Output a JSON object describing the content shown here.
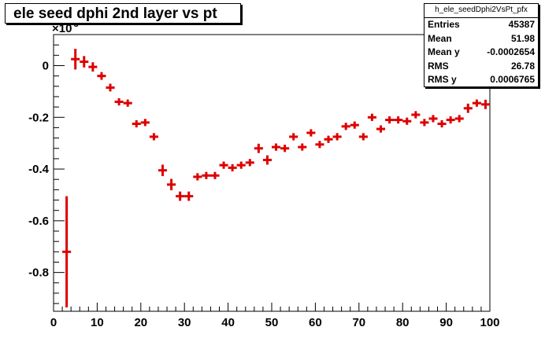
{
  "title": "ele seed dphi 2nd layer vs pt",
  "stats": {
    "name": "h_ele_seedDphi2VsPt_pfx",
    "rows": [
      {
        "label": "Entries",
        "value": "45387"
      },
      {
        "label": "Mean",
        "value": "51.98"
      },
      {
        "label": "Mean y",
        "value": "-0.0002654"
      },
      {
        "label": "RMS",
        "value": "26.78"
      },
      {
        "label": "RMS y",
        "value": "0.0006765"
      }
    ]
  },
  "chart_data": {
    "type": "scatter",
    "title": "ele seed dphi 2nd layer vs pt",
    "xlim": [
      0,
      100
    ],
    "ylim": [
      -0.95,
      0.12
    ],
    "y_exponent_label": "×10",
    "y_exponent": "-3",
    "x_ticks": [
      0,
      10,
      20,
      30,
      40,
      50,
      60,
      70,
      80,
      90,
      100
    ],
    "y_ticks": [
      0,
      -0.2,
      -0.4,
      -0.6,
      -0.8
    ],
    "y_tick_labels": [
      "0",
      "-0.2",
      "-0.4",
      "-0.6",
      "-0.8"
    ],
    "color": "#dd0000",
    "bin_halfwidth": 1,
    "series": [
      {
        "x": [
          3,
          5,
          7,
          9,
          11,
          13,
          15,
          17,
          19,
          21,
          23,
          25,
          27,
          29,
          31,
          33,
          35,
          37,
          39,
          41,
          43,
          45,
          47,
          49,
          51,
          53,
          55,
          57,
          59,
          61,
          63,
          65,
          67,
          69,
          71,
          73,
          75,
          77,
          79,
          81,
          83,
          85,
          87,
          89,
          91,
          93,
          95,
          97,
          99
        ],
        "y": [
          -0.72,
          0.025,
          0.015,
          -0.005,
          -0.04,
          -0.085,
          -0.14,
          -0.145,
          -0.225,
          -0.22,
          -0.275,
          -0.405,
          -0.46,
          -0.505,
          -0.505,
          -0.43,
          -0.425,
          -0.425,
          -0.385,
          -0.395,
          -0.385,
          -0.375,
          -0.32,
          -0.365,
          -0.315,
          -0.32,
          -0.275,
          -0.315,
          -0.26,
          -0.305,
          -0.285,
          -0.275,
          -0.235,
          -0.23,
          -0.275,
          -0.2,
          -0.245,
          -0.21,
          -0.21,
          -0.215,
          -0.19,
          -0.22,
          -0.205,
          -0.225,
          -0.21,
          -0.205,
          -0.165,
          -0.145,
          -0.15
        ],
        "yerr": [
          0.215,
          0.04,
          0.022,
          0.018,
          0.015,
          0.015,
          0.014,
          0.014,
          0.014,
          0.014,
          0.014,
          0.022,
          0.022,
          0.018,
          0.018,
          0.014,
          0.014,
          0.014,
          0.014,
          0.014,
          0.014,
          0.014,
          0.018,
          0.018,
          0.014,
          0.014,
          0.014,
          0.014,
          0.014,
          0.014,
          0.014,
          0.014,
          0.014,
          0.014,
          0.014,
          0.014,
          0.014,
          0.014,
          0.014,
          0.014,
          0.014,
          0.014,
          0.014,
          0.014,
          0.014,
          0.014,
          0.018,
          0.014,
          0.018
        ]
      }
    ]
  }
}
